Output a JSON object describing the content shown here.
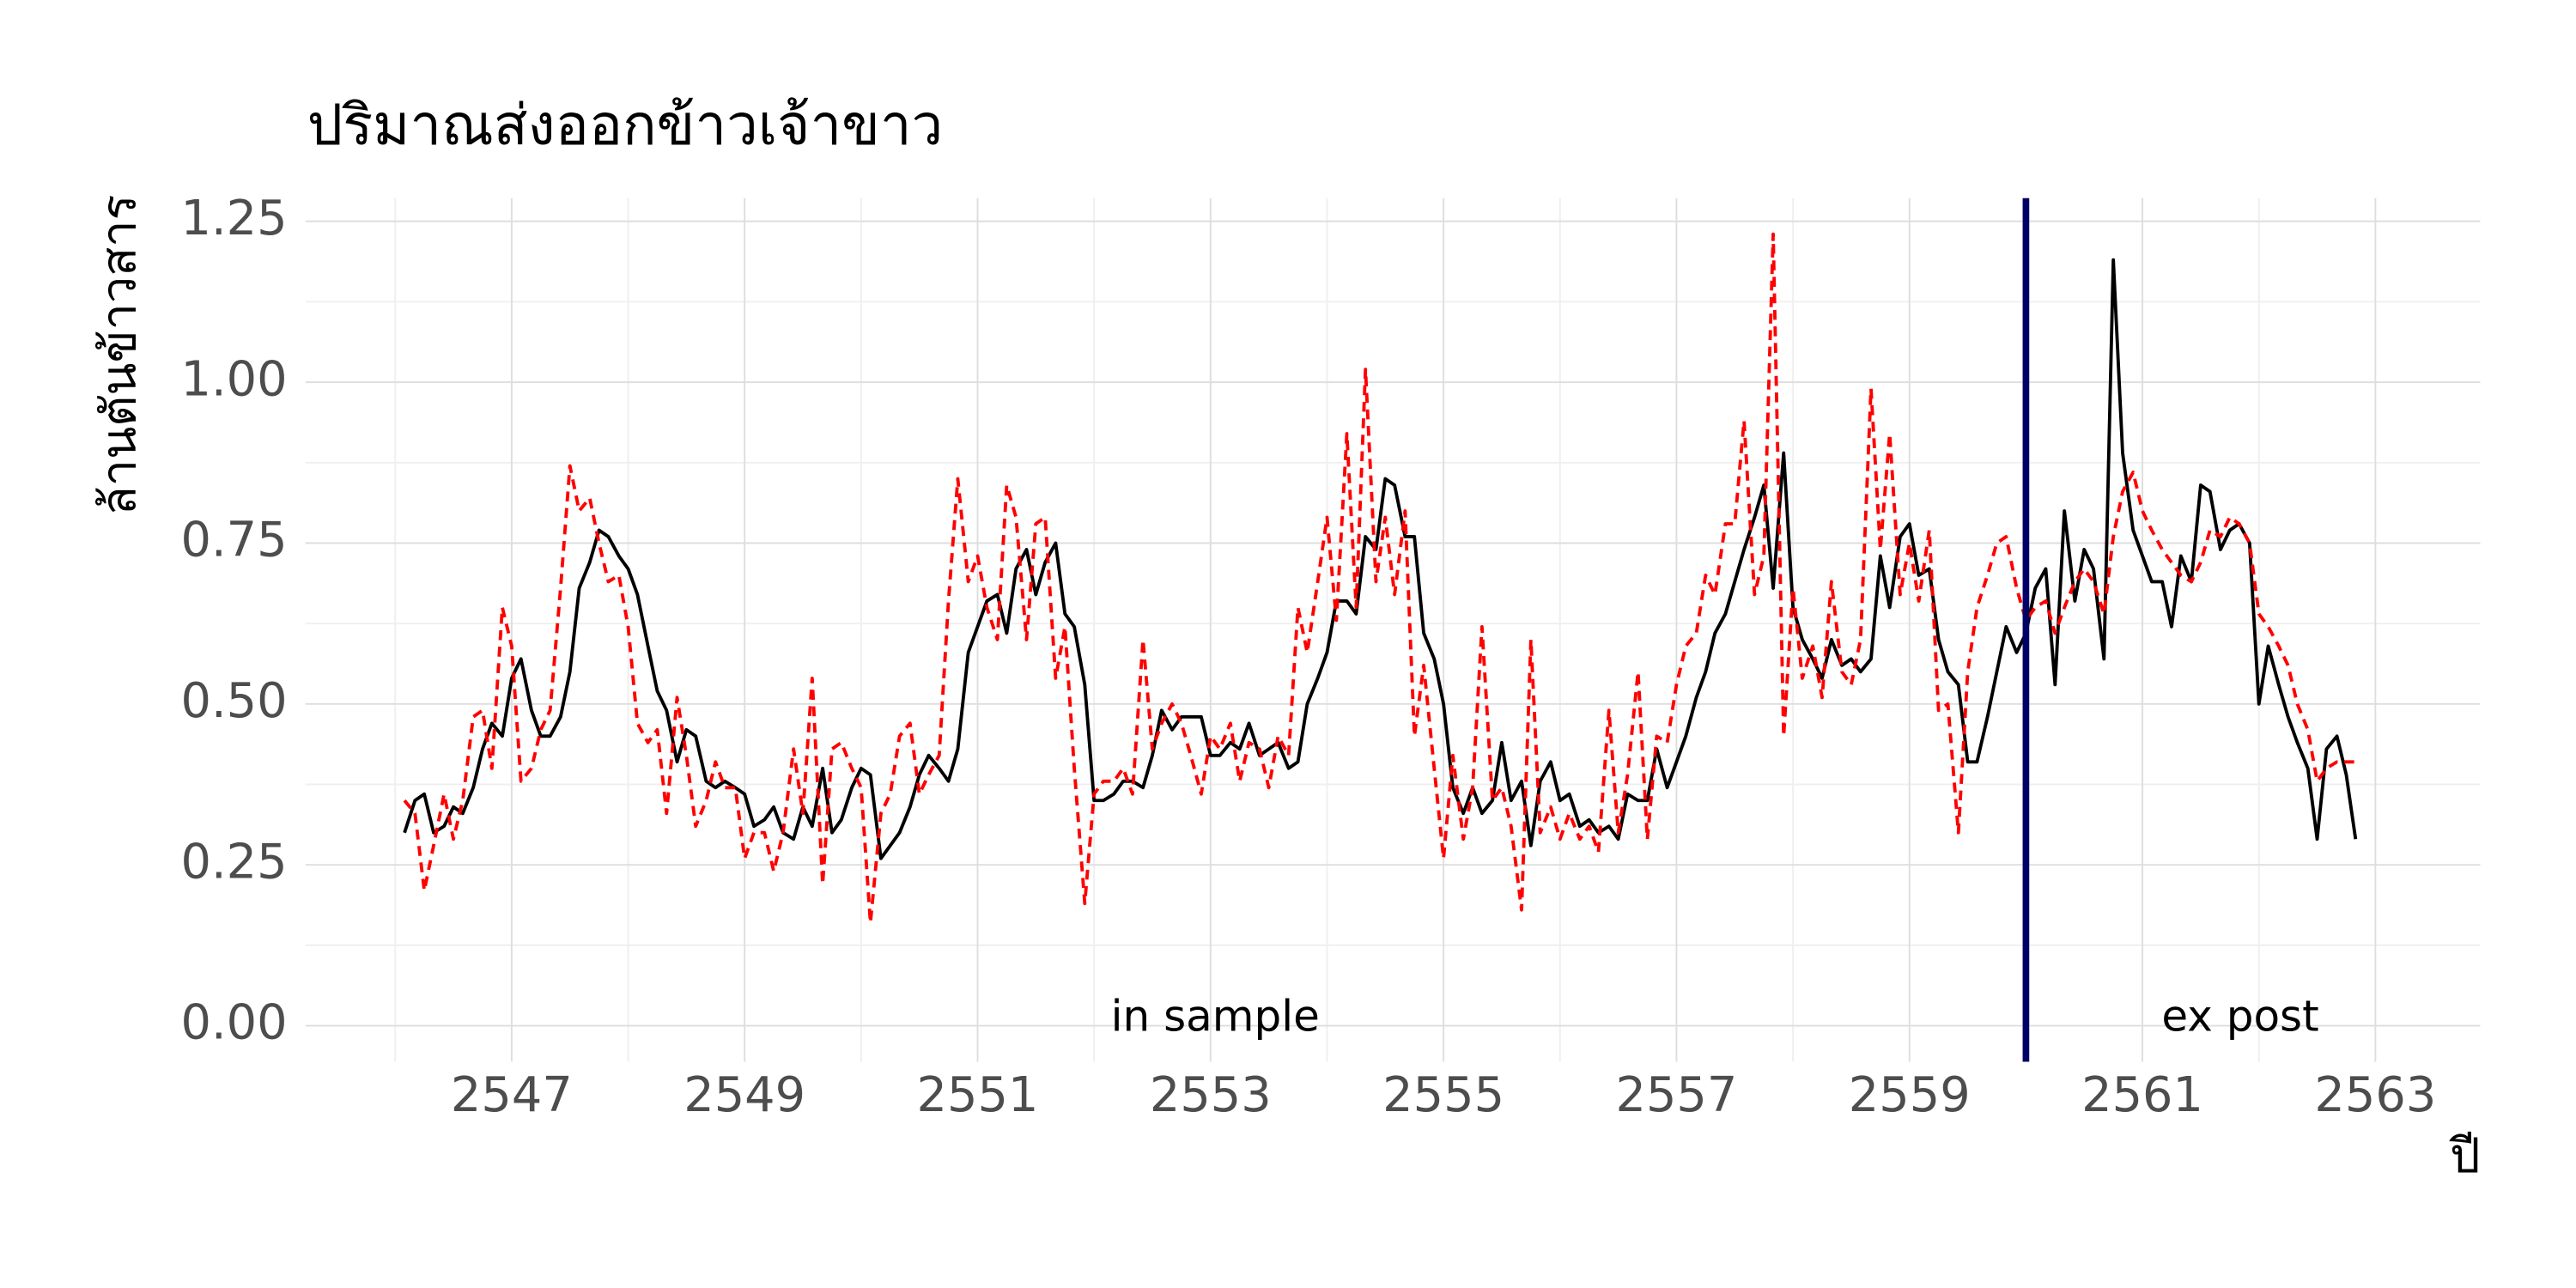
{
  "chart_data": {
    "type": "line",
    "title": "ปริมาณส่งออกข้าวเจ้าขาว",
    "x_label": "ปี",
    "y_label": "ล้านตันข้าวสาร",
    "x": [
      2546.08,
      2546.17,
      2546.25,
      2546.33,
      2546.42,
      2546.5,
      2546.58,
      2546.67,
      2546.75,
      2546.83,
      2546.92,
      2547,
      2547.08,
      2547.17,
      2547.25,
      2547.33,
      2547.42,
      2547.5,
      2547.58,
      2547.67,
      2547.75,
      2547.83,
      2547.92,
      2548,
      2548.08,
      2548.17,
      2548.25,
      2548.33,
      2548.42,
      2548.5,
      2548.58,
      2548.67,
      2548.75,
      2548.83,
      2548.92,
      2549,
      2549.08,
      2549.17,
      2549.25,
      2549.33,
      2549.42,
      2549.5,
      2549.58,
      2549.67,
      2549.75,
      2549.83,
      2549.92,
      2550,
      2550.08,
      2550.17,
      2550.25,
      2550.33,
      2550.42,
      2550.5,
      2550.58,
      2550.67,
      2550.75,
      2550.83,
      2550.92,
      2551,
      2551.08,
      2551.17,
      2551.25,
      2551.33,
      2551.42,
      2551.5,
      2551.58,
      2551.67,
      2551.75,
      2551.83,
      2551.92,
      2552,
      2552.08,
      2552.17,
      2552.25,
      2552.33,
      2552.42,
      2552.5,
      2552.58,
      2552.67,
      2552.75,
      2552.83,
      2552.92,
      2553,
      2553.08,
      2553.17,
      2553.25,
      2553.33,
      2553.42,
      2553.5,
      2553.58,
      2553.67,
      2553.75,
      2553.83,
      2553.92,
      2554,
      2554.08,
      2554.17,
      2554.25,
      2554.33,
      2554.42,
      2554.5,
      2554.58,
      2554.67,
      2554.75,
      2554.83,
      2554.92,
      2555,
      2555.08,
      2555.17,
      2555.25,
      2555.33,
      2555.42,
      2555.5,
      2555.58,
      2555.67,
      2555.75,
      2555.83,
      2555.92,
      2556,
      2556.08,
      2556.17,
      2556.25,
      2556.33,
      2556.42,
      2556.5,
      2556.58,
      2556.67,
      2556.75,
      2556.83,
      2556.92,
      2557,
      2557.08,
      2557.17,
      2557.25,
      2557.33,
      2557.42,
      2557.5,
      2557.58,
      2557.67,
      2557.75,
      2557.83,
      2557.92,
      2558,
      2558.08,
      2558.17,
      2558.25,
      2558.33,
      2558.42,
      2558.5,
      2558.58,
      2558.67,
      2558.75,
      2558.83,
      2558.92,
      2559,
      2559.08,
      2559.17,
      2559.25,
      2559.33,
      2559.42,
      2559.5,
      2559.58,
      2559.67,
      2559.75,
      2559.83,
      2559.92,
      2560,
      2560.08,
      2560.17,
      2560.25,
      2560.33,
      2560.42,
      2560.5,
      2560.58,
      2560.67,
      2560.75,
      2560.83,
      2560.92,
      2561,
      2561.08,
      2561.17,
      2561.25,
      2561.33,
      2561.42,
      2561.5,
      2561.58,
      2561.67,
      2561.75,
      2561.83,
      2561.92,
      2562,
      2562.08,
      2562.17,
      2562.25,
      2562.33,
      2562.42,
      2562.5,
      2562.58,
      2562.67,
      2562.75,
      2562.83
    ],
    "series": [
      {
        "color": "#000000",
        "line_style": "solid",
        "values": [
          0.3,
          0.35,
          0.36,
          0.3,
          0.31,
          0.34,
          0.33,
          0.37,
          0.43,
          0.47,
          0.45,
          0.54,
          0.57,
          0.49,
          0.45,
          0.45,
          0.48,
          0.55,
          0.68,
          0.72,
          0.77,
          0.76,
          0.73,
          0.71,
          0.67,
          0.59,
          0.52,
          0.49,
          0.41,
          0.46,
          0.45,
          0.38,
          0.37,
          0.38,
          0.37,
          0.36,
          0.31,
          0.32,
          0.34,
          0.3,
          0.29,
          0.34,
          0.31,
          0.4,
          0.3,
          0.32,
          0.37,
          0.4,
          0.39,
          0.26,
          0.28,
          0.3,
          0.34,
          0.39,
          0.42,
          0.4,
          0.38,
          0.43,
          0.58,
          0.62,
          0.66,
          0.67,
          0.61,
          0.71,
          0.74,
          0.67,
          0.72,
          0.75,
          0.64,
          0.62,
          0.53,
          0.35,
          0.35,
          0.36,
          0.38,
          0.38,
          0.37,
          0.42,
          0.49,
          0.46,
          0.48,
          0.48,
          0.48,
          0.42,
          0.42,
          0.44,
          0.43,
          0.47,
          0.42,
          0.43,
          0.44,
          0.4,
          0.41,
          0.5,
          0.54,
          0.58,
          0.66,
          0.66,
          0.64,
          0.76,
          0.74,
          0.85,
          0.84,
          0.76,
          0.76,
          0.61,
          0.57,
          0.5,
          0.37,
          0.33,
          0.37,
          0.33,
          0.35,
          0.44,
          0.35,
          0.38,
          0.28,
          0.38,
          0.41,
          0.35,
          0.36,
          0.31,
          0.32,
          0.3,
          0.31,
          0.29,
          0.36,
          0.35,
          0.35,
          0.43,
          0.37,
          0.41,
          0.45,
          0.51,
          0.55,
          0.61,
          0.64,
          0.69,
          0.74,
          0.79,
          0.84,
          0.68,
          0.89,
          0.65,
          0.6,
          0.57,
          0.54,
          0.6,
          0.56,
          0.57,
          0.55,
          0.57,
          0.73,
          0.65,
          0.76,
          0.78,
          0.7,
          0.71,
          0.6,
          0.55,
          0.53,
          0.41,
          0.41,
          0.48,
          0.55,
          0.62,
          0.58,
          0.61,
          0.68,
          0.71,
          0.53,
          0.8,
          0.66,
          0.74,
          0.71,
          0.57,
          1.19,
          0.89,
          0.77,
          0.73,
          0.69,
          0.69,
          0.62,
          0.73,
          0.69,
          0.84,
          0.83,
          0.74,
          0.77,
          0.78,
          0.75,
          0.5,
          0.59,
          0.53,
          0.48,
          0.44,
          0.4,
          0.29,
          0.43,
          0.45,
          0.39,
          0.29
        ]
      },
      {
        "color": "#ff0000",
        "line_style": "dashed",
        "values": [
          0.35,
          0.33,
          0.21,
          0.28,
          0.36,
          0.29,
          0.35,
          0.48,
          0.49,
          0.4,
          0.65,
          0.59,
          0.38,
          0.4,
          0.46,
          0.49,
          0.68,
          0.87,
          0.8,
          0.82,
          0.75,
          0.69,
          0.7,
          0.62,
          0.47,
          0.44,
          0.46,
          0.33,
          0.51,
          0.42,
          0.31,
          0.35,
          0.41,
          0.37,
          0.37,
          0.26,
          0.3,
          0.3,
          0.24,
          0.3,
          0.43,
          0.33,
          0.54,
          0.22,
          0.43,
          0.44,
          0.4,
          0.37,
          0.16,
          0.33,
          0.36,
          0.45,
          0.47,
          0.36,
          0.39,
          0.42,
          0.66,
          0.85,
          0.69,
          0.73,
          0.65,
          0.6,
          0.84,
          0.79,
          0.6,
          0.78,
          0.79,
          0.54,
          0.62,
          0.4,
          0.19,
          0.36,
          0.38,
          0.38,
          0.4,
          0.36,
          0.6,
          0.43,
          0.47,
          0.5,
          0.47,
          0.42,
          0.36,
          0.45,
          0.43,
          0.47,
          0.38,
          0.44,
          0.43,
          0.37,
          0.45,
          0.42,
          0.65,
          0.58,
          0.69,
          0.79,
          0.63,
          0.92,
          0.65,
          1.02,
          0.69,
          0.79,
          0.67,
          0.8,
          0.45,
          0.56,
          0.4,
          0.26,
          0.42,
          0.29,
          0.37,
          0.62,
          0.35,
          0.37,
          0.31,
          0.18,
          0.6,
          0.3,
          0.34,
          0.29,
          0.33,
          0.29,
          0.31,
          0.27,
          0.49,
          0.3,
          0.39,
          0.55,
          0.29,
          0.45,
          0.44,
          0.53,
          0.59,
          0.61,
          0.7,
          0.67,
          0.78,
          0.78,
          0.94,
          0.67,
          0.73,
          1.23,
          0.45,
          0.68,
          0.54,
          0.59,
          0.51,
          0.69,
          0.55,
          0.53,
          0.6,
          0.99,
          0.74,
          0.92,
          0.67,
          0.75,
          0.66,
          0.77,
          0.49,
          0.5,
          0.3,
          0.55,
          0.65,
          0.7,
          0.75,
          0.76,
          0.68,
          0.63,
          0.65,
          0.66,
          0.61,
          0.65,
          0.69,
          0.71,
          0.69,
          0.64,
          0.76,
          0.83,
          0.86,
          0.8,
          0.77,
          0.74,
          0.72,
          0.7,
          0.69,
          0.72,
          0.77,
          0.76,
          0.79,
          0.78,
          0.75,
          0.64,
          0.62,
          0.59,
          0.56,
          0.5,
          0.46,
          0.38,
          0.4,
          0.41,
          0.41,
          0.41
        ]
      }
    ],
    "vline": {
      "x": 2560,
      "color": "#000066"
    },
    "annotations": [
      "in sample",
      "ex post"
    ],
    "xlim": [
      2545.23,
      2563.9
    ],
    "ylim": [
      -0.056,
      1.286
    ],
    "xticks": [
      2547,
      2549,
      2551,
      2553,
      2555,
      2557,
      2559,
      2561,
      2563
    ],
    "yticks": [
      {
        "value": 0,
        "label": "0.00"
      },
      {
        "value": 0.25,
        "label": "0.25"
      },
      {
        "value": 0.5,
        "label": "0.50"
      },
      {
        "value": 0.75,
        "label": "0.75"
      },
      {
        "value": 1,
        "label": "1.00"
      },
      {
        "value": 1.25,
        "label": "1.25"
      }
    ],
    "grid": true
  }
}
